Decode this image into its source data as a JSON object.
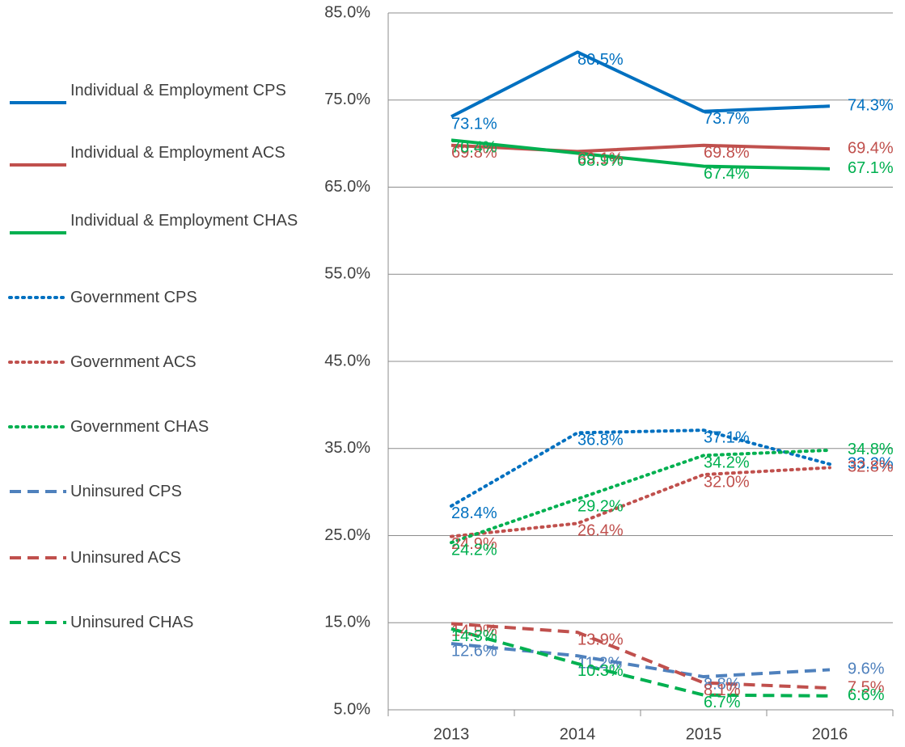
{
  "chart_data": {
    "type": "line",
    "categories": [
      "2013",
      "2014",
      "2015",
      "2016"
    ],
    "ylim": [
      5,
      85
    ],
    "yticks": [
      {
        "value": 5,
        "label": "5.0%"
      },
      {
        "value": 15,
        "label": "15.0%"
      },
      {
        "value": 25,
        "label": "25.0%"
      },
      {
        "value": 35,
        "label": "35.0%"
      },
      {
        "value": 45,
        "label": "45.0%"
      },
      {
        "value": 55,
        "label": "55.0%"
      },
      {
        "value": 65,
        "label": "65.0%"
      },
      {
        "value": 75,
        "label": "75.0%"
      },
      {
        "value": 85,
        "label": "85.0%"
      }
    ],
    "grid": true,
    "legend": "left",
    "series": [
      {
        "name": "Individual & Employment CPS",
        "color": "#0070c0",
        "dash": "solid",
        "values": [
          73.1,
          80.5,
          73.7,
          74.3
        ],
        "value_labels": [
          "73.1%",
          "80.5%",
          "73.7%",
          "74.3%"
        ]
      },
      {
        "name": "Individual & Employment ACS",
        "color": "#c0504d",
        "dash": "solid",
        "values": [
          69.8,
          69.1,
          69.8,
          69.4
        ],
        "value_labels": [
          "69.8%",
          "69.1%",
          "69.8%",
          "69.4%"
        ]
      },
      {
        "name": "Individual & Employment CHAS",
        "color": "#00b050",
        "dash": "solid",
        "values": [
          70.4,
          68.9,
          67.4,
          67.1
        ],
        "value_labels": [
          "70.4%",
          "68.9%",
          "67.4%",
          "67.1%"
        ]
      },
      {
        "name": "Government CPS",
        "color": "#0070c0",
        "dash": "dot",
        "values": [
          28.4,
          36.8,
          37.1,
          33.2
        ],
        "value_labels": [
          "28.4%",
          "36.8%",
          "37.1%",
          "33.2%"
        ]
      },
      {
        "name": "Government ACS",
        "color": "#c0504d",
        "dash": "dot",
        "values": [
          24.9,
          26.4,
          32.0,
          32.8
        ],
        "value_labels": [
          "24.9%",
          "26.4%",
          "32.0%",
          "32.8%"
        ]
      },
      {
        "name": "Government CHAS",
        "color": "#00b050",
        "dash": "dot",
        "values": [
          24.2,
          29.2,
          34.2,
          34.8
        ],
        "value_labels": [
          "24.2%",
          "29.2%",
          "34.2%",
          "34.8%"
        ]
      },
      {
        "name": "Uninsured CPS",
        "color": "#4f81bd",
        "dash": "dash",
        "values": [
          12.6,
          11.2,
          8.8,
          9.6
        ],
        "value_labels": [
          "12.6%",
          "11.2%",
          "8.8%",
          "9.6%"
        ]
      },
      {
        "name": "Uninsured ACS",
        "color": "#c0504d",
        "dash": "dash",
        "values": [
          14.9,
          13.9,
          8.1,
          7.5
        ],
        "value_labels": [
          "14.9%",
          "13.9%",
          "8.1%",
          "7.5%"
        ]
      },
      {
        "name": "Uninsured CHAS",
        "color": "#00b050",
        "dash": "dash",
        "values": [
          14.3,
          10.3,
          6.7,
          6.6
        ],
        "value_labels": [
          "14.3%",
          "10.3%",
          "6.7%",
          "6.6%"
        ]
      }
    ]
  }
}
